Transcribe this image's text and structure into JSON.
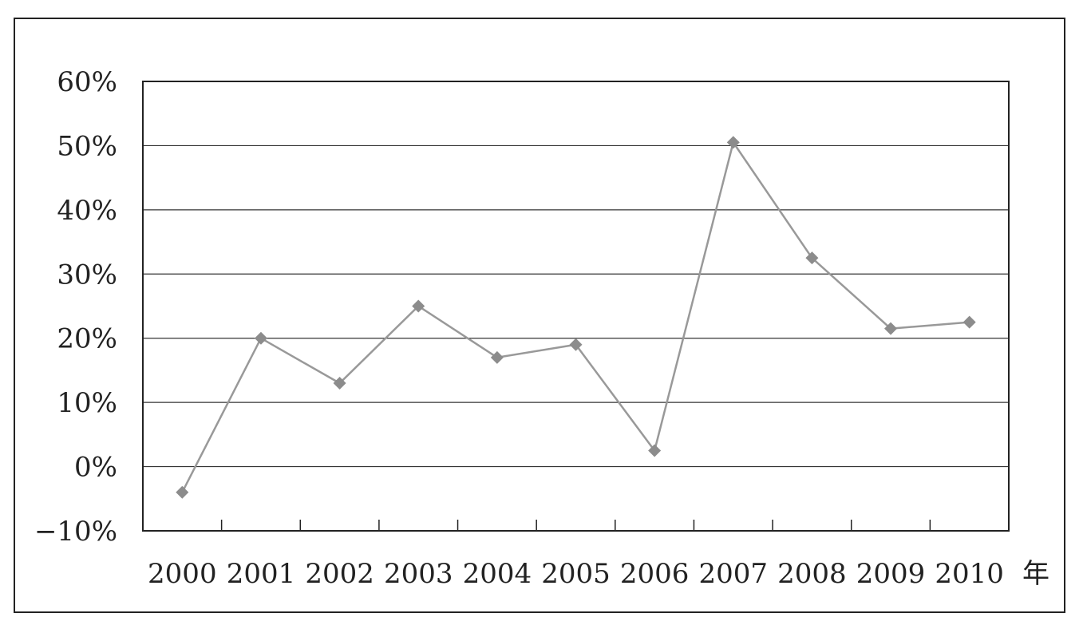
{
  "chart_data": {
    "type": "line",
    "x": [
      "2000",
      "2001",
      "2002",
      "2003",
      "2004",
      "2005",
      "2006",
      "2007",
      "2008",
      "2009",
      "2010"
    ],
    "categories": [
      "2000",
      "2001",
      "2002",
      "2003",
      "2004",
      "2005",
      "2006",
      "2007",
      "2008",
      "2009",
      "2010"
    ],
    "series": [
      {
        "values": [
          -4.0,
          20.0,
          13.0,
          25.0,
          17.0,
          19.0,
          2.5,
          50.5,
          32.5,
          21.5,
          22.5
        ]
      }
    ],
    "ylim": [
      -10,
      60
    ],
    "yticks": [
      60,
      50,
      40,
      30,
      20,
      10,
      0,
      -10
    ],
    "ytick_labels": [
      "60%",
      "50%",
      "40%",
      "30%",
      "20%",
      "10%",
      "0%",
      "−10%"
    ],
    "xlabel": "年",
    "ylabel": "",
    "title": "",
    "grid": true,
    "legend": false,
    "colors": {
      "line": "#999999",
      "marker": "#8c8c8c",
      "axis": "#222222",
      "grid": "#333333"
    }
  }
}
